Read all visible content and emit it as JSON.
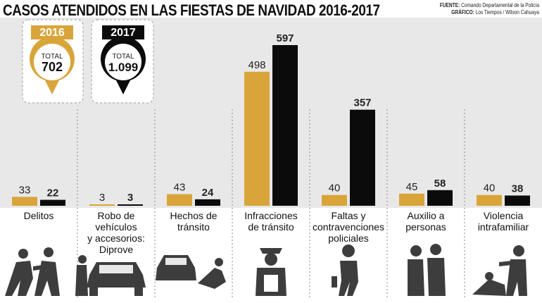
{
  "header": {
    "title": "CASOS ATENDIDOS EN LAS FIESTAS DE NAVIDAD 2016-2017",
    "fuente_label": "FUENTE:",
    "fuente": "Comando Departamental de la Policía",
    "grafico_label": "GRÁFICO:",
    "grafico": "Los Tiempos / Wilson Cahuaya"
  },
  "colors": {
    "y2016": "#d9a53a",
    "y2017": "#0b0b0b",
    "panel": "#e8e8e8"
  },
  "totals": [
    {
      "year": "2016",
      "label": "TOTAL",
      "value": "702"
    },
    {
      "year": "2017",
      "label": "TOTAL",
      "value": "1.099"
    }
  ],
  "chart_data": {
    "type": "bar",
    "categories": [
      "Delitos",
      "Robo de vehículos\ny accesorios:\nDiprove",
      "Hechos de\ntránsito",
      "Infracciones\nde tránsito",
      "Faltas y\ncontravenciones\npoliciales",
      "Auxilio a\npersonas",
      "Violencia\nintrafamiliar"
    ],
    "series": [
      {
        "name": "2016",
        "values": [
          33,
          3,
          43,
          498,
          40,
          45,
          40
        ]
      },
      {
        "name": "2017",
        "values": [
          22,
          3,
          24,
          597,
          357,
          58,
          38
        ]
      }
    ],
    "ylim": [
      0,
      597
    ],
    "legend": "top-left"
  },
  "icons": [
    "thief-fight-icon",
    "car-theft-icon",
    "car-accident-icon",
    "traffic-police-icon",
    "drunk-person-icon",
    "helping-person-icon",
    "domestic-violence-icon"
  ]
}
